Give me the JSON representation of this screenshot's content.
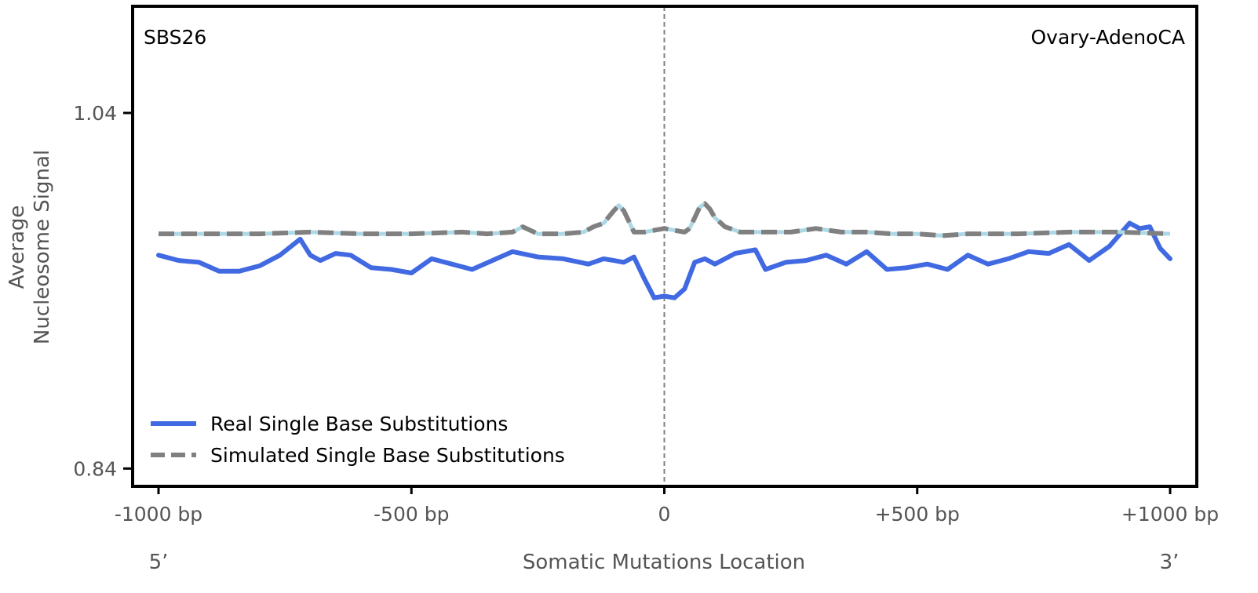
{
  "chart_data": {
    "type": "line",
    "signature_label": "SBS26",
    "tissue_label": "Ovary-AdenoCA",
    "xlabel": "Somatic Mutations Location",
    "ylabel_line1": "Average",
    "ylabel_line2": "Nucleosome Signal",
    "xlim": [
      -1000,
      1000
    ],
    "ylim": [
      0.83,
      1.1
    ],
    "x_ticks": [
      -1000,
      -500,
      0,
      500,
      1000
    ],
    "x_tick_labels": [
      "-1000 bp",
      "-500 bp",
      "0",
      "+500 bp",
      "+1000 bp"
    ],
    "y_ticks": [
      0.84,
      1.04
    ],
    "y_tick_labels": [
      "0.84",
      "1.04"
    ],
    "end_labels": {
      "left": "5’",
      "right": "3’"
    },
    "center_line_x": 0,
    "legend": {
      "position": "lower-left"
    },
    "series": [
      {
        "name": "Real Single Base Substitutions",
        "style": "solid",
        "color": "#4169E1",
        "x": [
          -1000,
          -960,
          -920,
          -880,
          -840,
          -800,
          -760,
          -720,
          -700,
          -680,
          -650,
          -620,
          -580,
          -540,
          -500,
          -460,
          -420,
          -380,
          -340,
          -300,
          -250,
          -200,
          -150,
          -120,
          -100,
          -80,
          -60,
          -40,
          -20,
          0,
          20,
          40,
          60,
          80,
          100,
          140,
          180,
          200,
          240,
          280,
          320,
          360,
          400,
          440,
          480,
          520,
          560,
          600,
          640,
          680,
          720,
          760,
          800,
          840,
          880,
          920,
          940,
          960,
          980,
          1000
        ],
        "y": [
          0.96,
          0.957,
          0.956,
          0.951,
          0.951,
          0.954,
          0.96,
          0.969,
          0.96,
          0.957,
          0.961,
          0.96,
          0.953,
          0.952,
          0.95,
          0.958,
          0.955,
          0.952,
          0.957,
          0.962,
          0.959,
          0.958,
          0.955,
          0.958,
          0.957,
          0.956,
          0.959,
          0.947,
          0.936,
          0.937,
          0.936,
          0.941,
          0.956,
          0.958,
          0.955,
          0.961,
          0.963,
          0.952,
          0.956,
          0.957,
          0.96,
          0.955,
          0.962,
          0.952,
          0.953,
          0.955,
          0.952,
          0.96,
          0.955,
          0.958,
          0.962,
          0.961,
          0.966,
          0.957,
          0.965,
          0.978,
          0.975,
          0.976,
          0.964,
          0.958
        ]
      },
      {
        "name": "Simulated Single Base Substitutions",
        "style": "dashed",
        "color": "#808080",
        "color_secondary": "#ADD8E6",
        "x": [
          -1000,
          -900,
          -800,
          -700,
          -600,
          -500,
          -400,
          -350,
          -300,
          -280,
          -250,
          -200,
          -160,
          -140,
          -120,
          -100,
          -90,
          -80,
          -70,
          -60,
          -40,
          -20,
          0,
          20,
          40,
          50,
          60,
          70,
          80,
          90,
          100,
          120,
          150,
          200,
          250,
          300,
          350,
          400,
          450,
          500,
          550,
          600,
          700,
          800,
          900,
          1000
        ],
        "y": [
          0.972,
          0.972,
          0.972,
          0.973,
          0.972,
          0.972,
          0.973,
          0.972,
          0.973,
          0.976,
          0.972,
          0.972,
          0.973,
          0.976,
          0.978,
          0.985,
          0.988,
          0.985,
          0.979,
          0.973,
          0.973,
          0.974,
          0.975,
          0.974,
          0.973,
          0.975,
          0.981,
          0.987,
          0.989,
          0.986,
          0.981,
          0.976,
          0.973,
          0.973,
          0.973,
          0.975,
          0.973,
          0.973,
          0.972,
          0.972,
          0.971,
          0.972,
          0.972,
          0.973,
          0.973,
          0.972
        ]
      }
    ]
  }
}
